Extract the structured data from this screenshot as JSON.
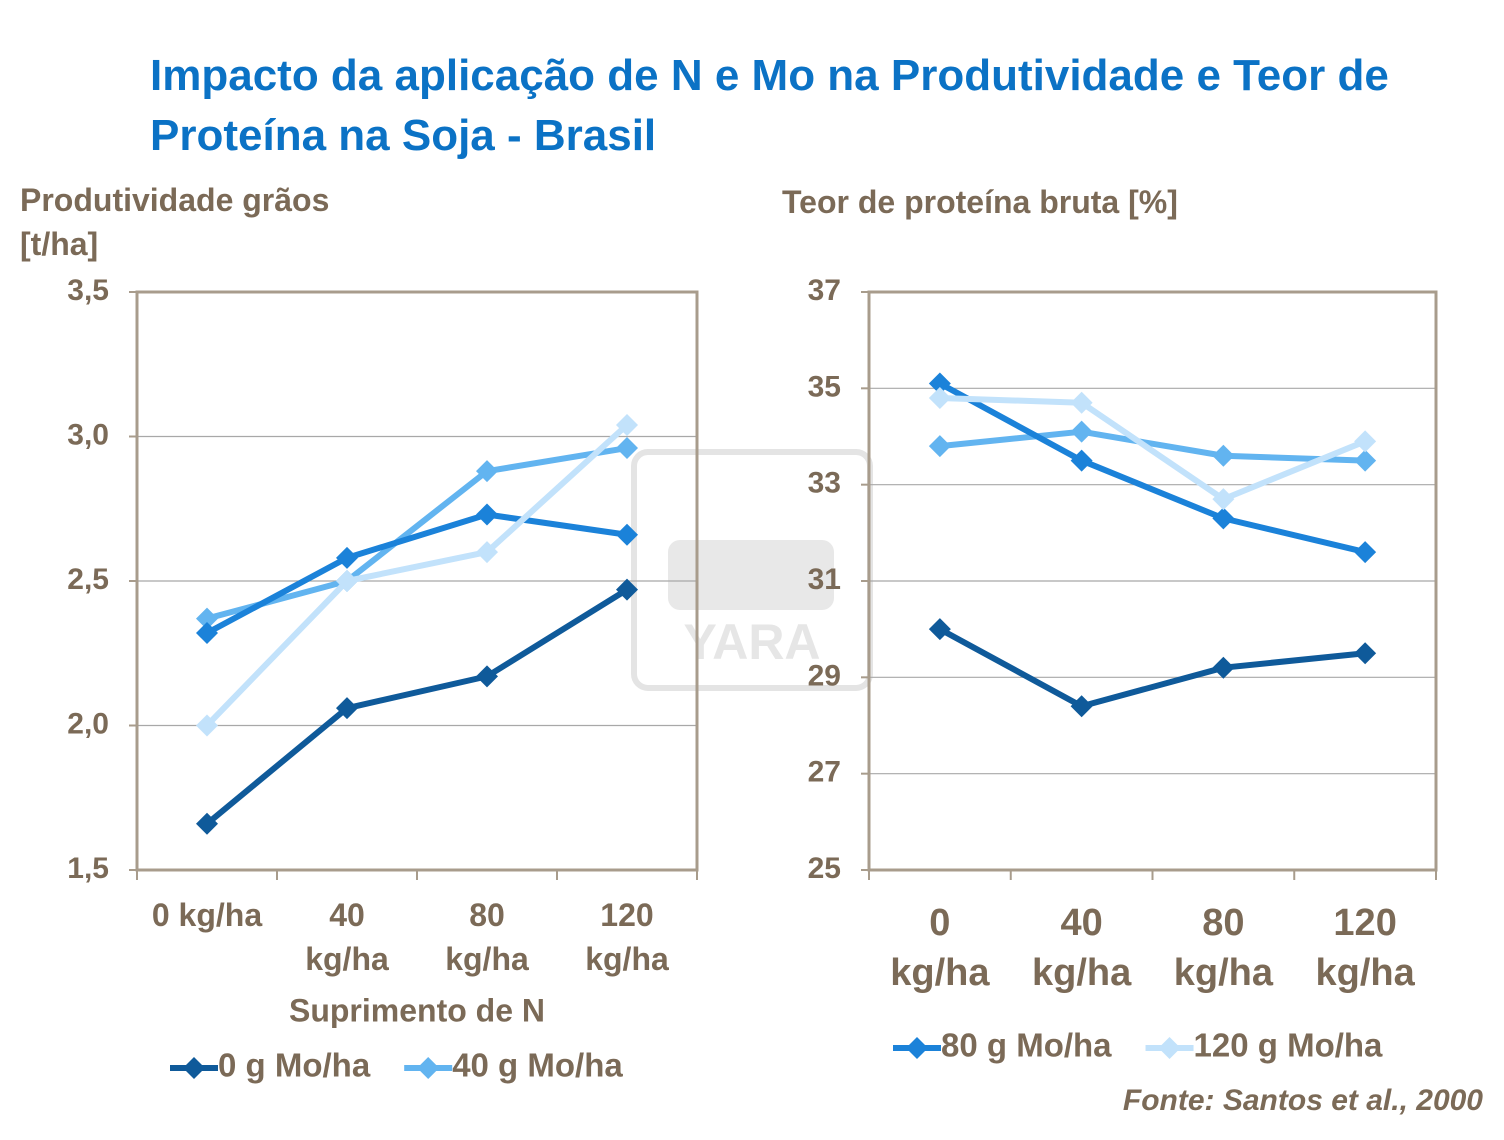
{
  "title": "Impacto da aplicação de N e Mo na Produtividade e Teor de Proteína na Soja - Brasil",
  "watermark": "YARA",
  "source": "Fonte: Santos et al., 2000",
  "chart_data": [
    {
      "type": "line",
      "y_label": "Produtividade grãos [t/ha]",
      "x_label": "Suprimento de N",
      "categories": [
        "0 kg/ha",
        "40 kg/ha",
        "80 kg/ha",
        "120 kg/ha"
      ],
      "ylim": [
        1.5,
        3.5
      ],
      "yticks": [
        {
          "value": 1.5,
          "label": "1,5"
        },
        {
          "value": 2.0,
          "label": "2,0"
        },
        {
          "value": 2.5,
          "label": "2,5"
        },
        {
          "value": 3.0,
          "label": "3,0"
        },
        {
          "value": 3.5,
          "label": "3,5"
        }
      ],
      "grid": true,
      "series": [
        {
          "name": "0 g Mo/ha",
          "color": "#0f5a9a",
          "values": [
            1.66,
            2.06,
            2.17,
            2.47
          ]
        },
        {
          "name": "40 g Mo/ha",
          "color": "#62b4f0",
          "values": [
            2.37,
            2.5,
            2.88,
            2.96
          ]
        },
        {
          "color": "#1b82d9",
          "values": [
            2.32,
            2.58,
            2.73,
            2.66
          ]
        },
        {
          "color": "#c2e2fb",
          "values": [
            2.0,
            2.5,
            2.6,
            3.04
          ]
        }
      ]
    },
    {
      "type": "line",
      "y_label": "Teor de proteína bruta [%]",
      "categories": [
        "0 kg/ha",
        "40 kg/ha",
        "80 kg/ha",
        "120 kg/ha"
      ],
      "ylim": [
        25,
        37
      ],
      "yticks": [
        25,
        27,
        29,
        31,
        33,
        35,
        37
      ],
      "grid": true,
      "series": [
        {
          "color": "#0f5a9a",
          "values": [
            30.0,
            28.4,
            29.2,
            29.5
          ]
        },
        {
          "color": "#62b4f0",
          "values": [
            33.8,
            34.1,
            33.6,
            33.5
          ]
        },
        {
          "name": "80 g Mo/ha",
          "color": "#1b82d9",
          "values": [
            35.1,
            33.5,
            32.3,
            31.6
          ]
        },
        {
          "name": "120 g Mo/ha",
          "color": "#c2e2fb",
          "values": [
            34.8,
            34.7,
            32.7,
            33.9
          ]
        }
      ]
    }
  ]
}
